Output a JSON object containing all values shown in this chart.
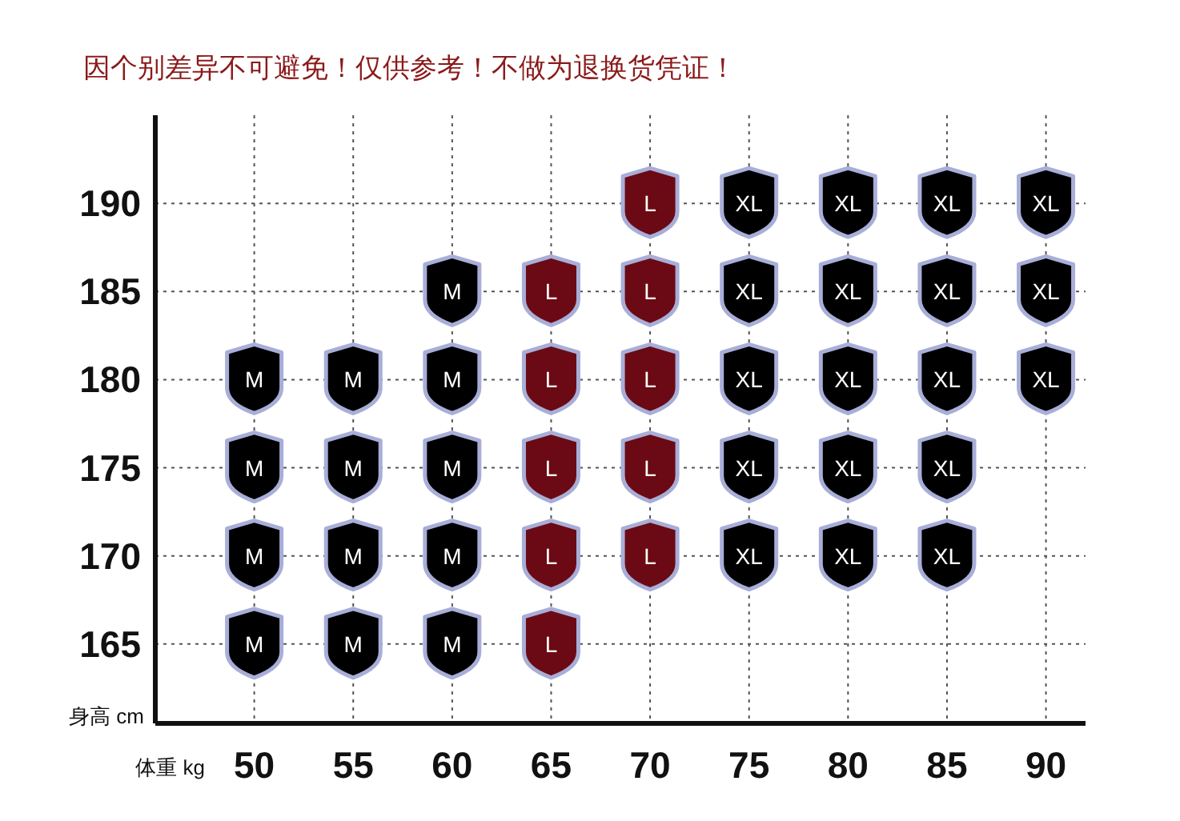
{
  "chart_data": {
    "type": "scatter",
    "title": "因个别差异不可避免！仅供参考！不做为退换货凭证！",
    "xlabel": "体重 kg",
    "ylabel": "身高 cm",
    "xlim": [
      45,
      92
    ],
    "ylim": [
      160.5,
      195
    ],
    "xticks": [
      50,
      55,
      60,
      65,
      70,
      75,
      80,
      85,
      90
    ],
    "yticks": [
      165,
      170,
      175,
      180,
      185,
      190
    ],
    "grid": true,
    "legend": false,
    "line_style": "dotted",
    "series": [
      {
        "name": "M",
        "color": "#000000",
        "x": [
          50,
          50,
          50,
          50,
          55,
          55,
          55,
          55,
          60,
          60,
          60,
          60,
          60
        ],
        "values": [
          165,
          170,
          175,
          180,
          165,
          170,
          175,
          180,
          165,
          170,
          175,
          180,
          185
        ]
      },
      {
        "name": "L",
        "color": "#6b0a14",
        "x": [
          65,
          65,
          65,
          65,
          65,
          70,
          70,
          70,
          70,
          70
        ],
        "values": [
          165,
          170,
          175,
          180,
          185,
          170,
          175,
          180,
          185,
          190
        ]
      },
      {
        "name": "XL",
        "color": "#000000",
        "x": [
          75,
          75,
          75,
          75,
          75,
          80,
          80,
          80,
          80,
          80,
          85,
          85,
          85,
          85,
          85,
          90,
          90,
          90
        ],
        "values": [
          170,
          175,
          180,
          185,
          190,
          170,
          175,
          180,
          185,
          190,
          170,
          175,
          180,
          185,
          190,
          180,
          185,
          190
        ]
      }
    ]
  }
}
